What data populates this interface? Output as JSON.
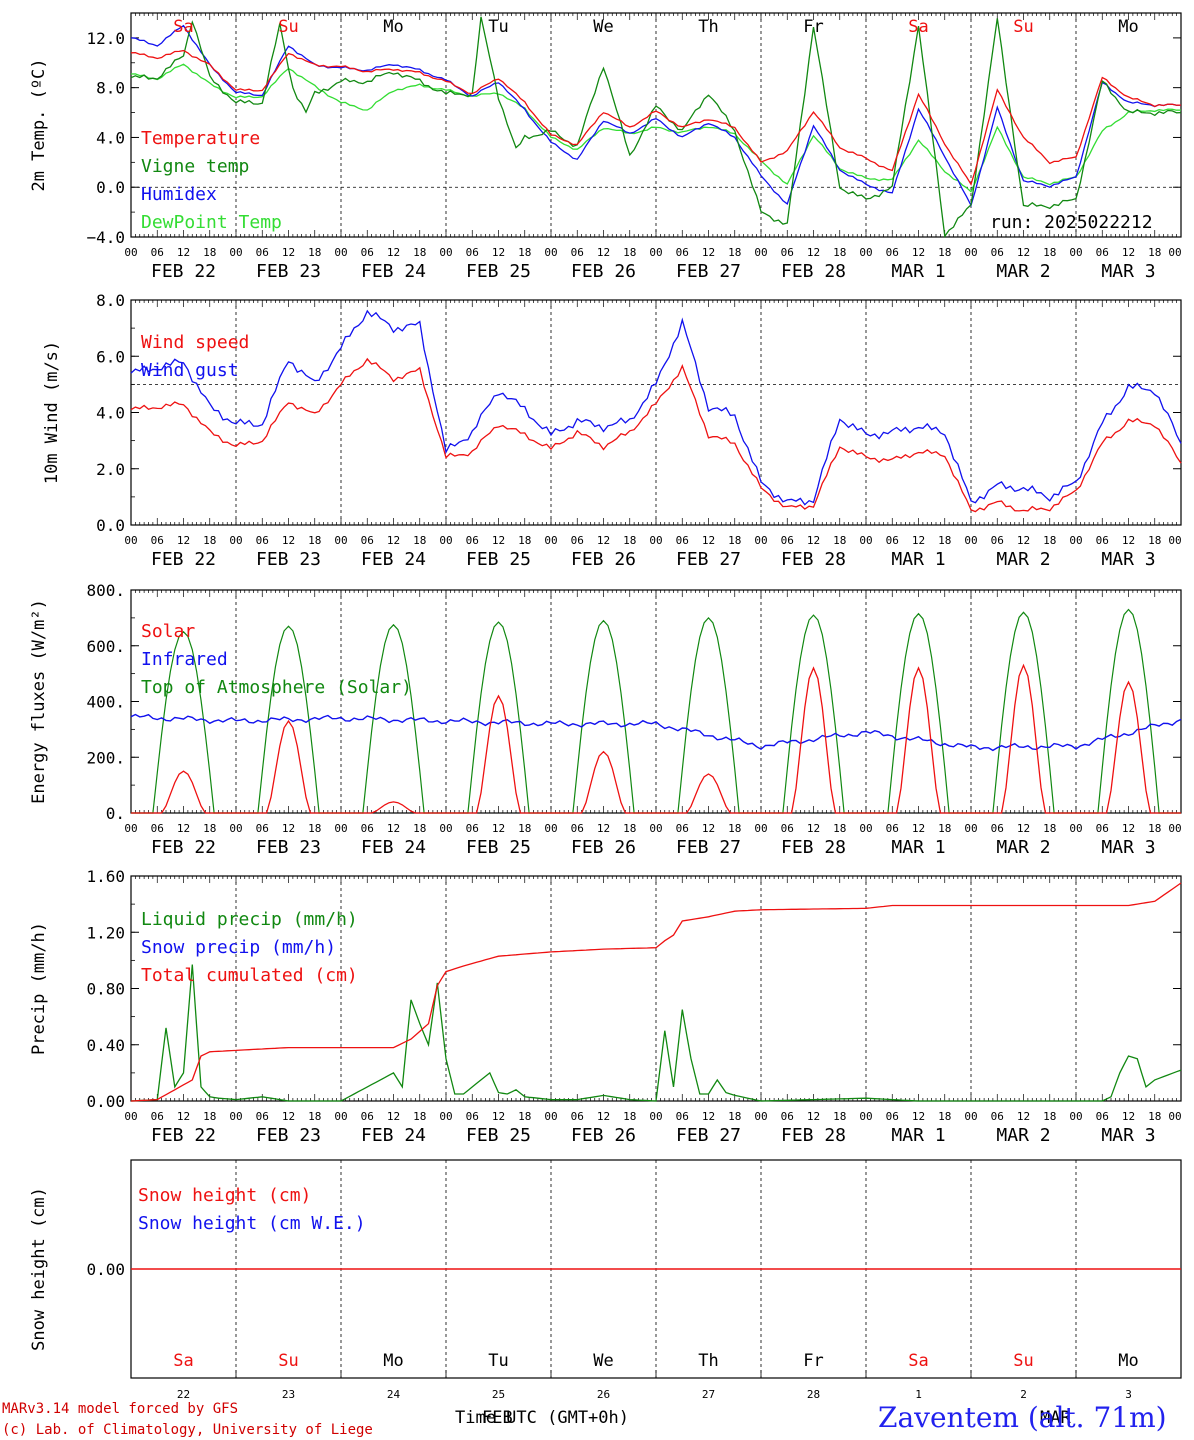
{
  "colors": {
    "red": "#ee1111",
    "green": "#118811",
    "blue": "#1111ee",
    "lightgreen": "#33dd33",
    "black": "#000000"
  },
  "chart_data": [
    {
      "type": "line",
      "id": "temp",
      "ylabel": "2m Temp. (ºC)",
      "ylim": [
        -4,
        14
      ],
      "yticks": [
        -4,
        0,
        4,
        8,
        12
      ],
      "ytick_labels": [
        "−4.0",
        "0.0",
        "4.0",
        "8.0",
        "12.0"
      ],
      "ref_line": 0,
      "x_unit": "hours since 2025-02-22 00 UTC",
      "legend": [
        "Temperature",
        "Vigne temp",
        "Humidex",
        "DewPoint Temp"
      ],
      "run_label": "run: 2025022212",
      "series": [
        {
          "name": "Temperature",
          "color": "red",
          "x": [
            0,
            6,
            12,
            18,
            24,
            30,
            36,
            42,
            48,
            54,
            60,
            66,
            72,
            78,
            84,
            90,
            96,
            102,
            108,
            114,
            120,
            126,
            132,
            138,
            144,
            150,
            156,
            162,
            168,
            174,
            180,
            186,
            192,
            198,
            204,
            210,
            216,
            222,
            228,
            234,
            240
          ],
          "y": [
            10.8,
            10.4,
            11.0,
            9.8,
            7.8,
            7.8,
            10.8,
            9.8,
            9.7,
            9.3,
            9.5,
            9.2,
            8.5,
            7.5,
            8.8,
            6.8,
            4.2,
            3.4,
            6.1,
            4.8,
            6.1,
            4.8,
            5.5,
            4.8,
            2.0,
            2.9,
            6.1,
            3.2,
            2.3,
            1.3,
            7.5,
            3.5,
            0.2,
            7.8,
            4.0,
            2.0,
            2.4,
            8.8,
            7.2,
            6.6,
            6.6
          ]
        },
        {
          "name": "Vigne temp",
          "color": "green",
          "x": [
            0,
            6,
            12,
            14,
            18,
            24,
            30,
            34,
            37,
            40,
            42,
            48,
            54,
            60,
            66,
            72,
            78,
            80,
            84,
            88,
            90,
            96,
            102,
            108,
            114,
            120,
            126,
            132,
            138,
            144,
            150,
            156,
            162,
            168,
            174,
            180,
            186,
            192,
            198,
            204,
            210,
            216,
            222,
            228,
            234,
            240
          ],
          "y": [
            8.8,
            8.8,
            10.6,
            13.5,
            8.8,
            6.8,
            6.8,
            13.0,
            8.0,
            6.0,
            7.5,
            8.5,
            8.5,
            9.3,
            8.5,
            7.5,
            7.5,
            13.5,
            7.3,
            3.0,
            4.0,
            4.5,
            3.3,
            9.8,
            2.5,
            6.5,
            4.5,
            7.6,
            4.5,
            -2.0,
            -3.0,
            13.0,
            0.0,
            -1.0,
            0.0,
            13.0,
            -3.8,
            -1.5,
            13.5,
            -1.5,
            -1.5,
            -1.0,
            8.5,
            6.0,
            6.0,
            6.0
          ]
        },
        {
          "name": "Humidex",
          "color": "blue",
          "x": [
            0,
            6,
            12,
            18,
            24,
            30,
            36,
            42,
            48,
            54,
            60,
            66,
            72,
            78,
            84,
            90,
            96,
            102,
            108,
            114,
            120,
            126,
            132,
            138,
            144,
            150,
            156,
            162,
            168,
            174,
            180,
            186,
            192,
            198,
            204,
            210,
            216,
            222,
            228,
            234,
            240
          ],
          "y": [
            12.0,
            11.4,
            13.0,
            9.8,
            7.6,
            7.4,
            11.4,
            9.8,
            9.6,
            9.4,
            9.9,
            9.4,
            8.6,
            7.3,
            8.5,
            6.2,
            3.6,
            2.2,
            5.4,
            4.3,
            5.5,
            4.0,
            5.2,
            4.0,
            0.9,
            -1.4,
            5.0,
            1.4,
            0.2,
            -0.5,
            6.3,
            2.5,
            -1.5,
            6.4,
            0.5,
            0.1,
            0.8,
            8.4,
            6.8,
            6.6,
            6.6
          ]
        },
        {
          "name": "DewPoint Temp",
          "color": "lightgreen",
          "x": [
            0,
            6,
            12,
            18,
            24,
            30,
            36,
            42,
            48,
            54,
            60,
            66,
            72,
            78,
            84,
            90,
            96,
            102,
            108,
            114,
            120,
            126,
            132,
            138,
            144,
            150,
            156,
            162,
            168,
            174,
            180,
            186,
            192,
            198,
            204,
            210,
            216,
            222,
            228,
            234,
            240
          ],
          "y": [
            9.1,
            8.7,
            9.9,
            8.3,
            7.2,
            7.3,
            9.6,
            8.1,
            6.8,
            6.2,
            7.8,
            8.2,
            7.8,
            7.3,
            7.6,
            6.3,
            4.0,
            3.0,
            4.8,
            4.3,
            4.8,
            4.4,
            4.9,
            4.3,
            2.1,
            0.2,
            4.2,
            1.5,
            0.7,
            0.6,
            3.8,
            1.3,
            -0.4,
            4.8,
            0.8,
            0.3,
            0.8,
            4.5,
            6.0,
            6.2,
            6.2
          ]
        }
      ]
    },
    {
      "type": "line",
      "id": "wind",
      "ylabel": "10m Wind (m/s)",
      "ylim": [
        0,
        8
      ],
      "yticks": [
        0,
        2,
        4,
        6,
        8
      ],
      "ytick_labels": [
        "0.0",
        "2.0",
        "4.0",
        "6.0",
        "8.0"
      ],
      "ref_line": 5,
      "legend": [
        "Wind speed",
        "Wind gust"
      ],
      "series": [
        {
          "name": "Wind speed",
          "color": "red",
          "x": [
            0,
            6,
            12,
            18,
            24,
            30,
            36,
            42,
            48,
            54,
            60,
            66,
            72,
            78,
            84,
            90,
            96,
            102,
            108,
            114,
            120,
            126,
            132,
            138,
            144,
            150,
            156,
            162,
            168,
            174,
            180,
            186,
            192,
            198,
            204,
            210,
            216,
            222,
            228,
            234,
            240
          ],
          "y": [
            4.1,
            4.2,
            4.3,
            3.3,
            2.8,
            3.0,
            4.4,
            3.9,
            5.0,
            5.9,
            5.2,
            5.5,
            2.4,
            2.6,
            3.6,
            3.2,
            2.7,
            3.3,
            2.8,
            3.3,
            4.3,
            5.6,
            3.2,
            2.9,
            1.3,
            0.6,
            0.7,
            2.8,
            2.4,
            2.3,
            2.6,
            2.5,
            0.5,
            0.8,
            0.5,
            0.6,
            1.2,
            2.9,
            3.7,
            3.6,
            2.2
          ]
        },
        {
          "name": "Wind gust",
          "color": "blue",
          "x": [
            0,
            6,
            12,
            18,
            24,
            30,
            36,
            42,
            48,
            54,
            60,
            66,
            72,
            78,
            84,
            90,
            96,
            102,
            108,
            114,
            120,
            126,
            132,
            138,
            144,
            150,
            156,
            162,
            168,
            174,
            180,
            186,
            192,
            198,
            204,
            210,
            216,
            222,
            228,
            234,
            240
          ],
          "y": [
            5.4,
            5.6,
            5.8,
            4.2,
            3.6,
            3.6,
            5.9,
            5.0,
            6.3,
            7.6,
            7.0,
            7.1,
            2.6,
            3.3,
            4.8,
            4.1,
            3.2,
            3.7,
            3.5,
            3.7,
            5.0,
            7.2,
            4.2,
            3.9,
            1.5,
            0.8,
            0.9,
            3.8,
            3.2,
            3.3,
            3.5,
            3.3,
            0.8,
            1.4,
            1.3,
            1.0,
            1.5,
            3.6,
            4.9,
            4.8,
            2.9
          ]
        }
      ]
    },
    {
      "type": "line",
      "id": "flux",
      "ylabel": "Energy fluxes (W/m²)",
      "ylim": [
        0,
        800
      ],
      "yticks": [
        0,
        200,
        400,
        600,
        800
      ],
      "ytick_labels": [
        "0.",
        "200.",
        "400.",
        "600.",
        "800."
      ],
      "legend": [
        "Solar",
        "Infrared",
        "Top of Atmosphere (Solar)"
      ],
      "toa_peaks": [
        650,
        670,
        675,
        685,
        690,
        700,
        710,
        715,
        720,
        730
      ],
      "solar_peaks": [
        150,
        330,
        40,
        420,
        220,
        140,
        520,
        520,
        530,
        470
      ],
      "ir_daily": [
        345,
        330,
        340,
        330,
        320,
        320,
        240,
        290,
        235,
        240
      ],
      "ir_end": 335
    },
    {
      "type": "line",
      "id": "precip",
      "ylabel": "Precip (mm/h)",
      "ylim": [
        0,
        1.6
      ],
      "yticks": [
        0,
        0.4,
        0.8,
        1.2,
        1.6
      ],
      "ytick_labels": [
        "0.00",
        "0.40",
        "0.80",
        "1.20",
        "1.60"
      ],
      "legend": [
        "Liquid precip (mm/h)",
        "Snow precip (mm/h)",
        "Total cumulated (cm)"
      ],
      "series": [
        {
          "name": "Liquid precip (mm/h)",
          "color": "green",
          "x": [
            0,
            6,
            8,
            10,
            12,
            14,
            16,
            18,
            20,
            24,
            30,
            36,
            48,
            60,
            62,
            64,
            66,
            68,
            70,
            72,
            74,
            76,
            80,
            82,
            84,
            86,
            88,
            90,
            96,
            102,
            108,
            114,
            120,
            122,
            124,
            126,
            128,
            130,
            132,
            134,
            136,
            138,
            144,
            168,
            174,
            180,
            210,
            216,
            222,
            224,
            226,
            228,
            230,
            232,
            234,
            240
          ],
          "y": [
            0,
            0.01,
            0.52,
            0.1,
            0.2,
            0.97,
            0.1,
            0.03,
            0.02,
            0.01,
            0.03,
            0.0,
            0.0,
            0.2,
            0.1,
            0.72,
            0.55,
            0.4,
            0.84,
            0.3,
            0.05,
            0.05,
            0.15,
            0.2,
            0.06,
            0.05,
            0.08,
            0.03,
            0.01,
            0.01,
            0.04,
            0.01,
            0.0,
            0.5,
            0.1,
            0.65,
            0.3,
            0.05,
            0.05,
            0.15,
            0.06,
            0.04,
            0.0,
            0.02,
            0.01,
            0.0,
            0.0,
            0.0,
            0.0,
            0.03,
            0.2,
            0.32,
            0.3,
            0.1,
            0.15,
            0.22
          ]
        },
        {
          "name": "Total cumulated (cm)",
          "color": "red",
          "x": [
            0,
            6,
            10,
            14,
            16,
            18,
            24,
            36,
            48,
            60,
            64,
            68,
            70,
            72,
            76,
            84,
            96,
            108,
            120,
            122,
            124,
            126,
            132,
            138,
            144,
            168,
            174,
            180,
            204,
            216,
            222,
            228,
            234,
            240
          ],
          "y": [
            0,
            0.01,
            0.08,
            0.15,
            0.32,
            0.35,
            0.36,
            0.38,
            0.38,
            0.38,
            0.44,
            0.55,
            0.82,
            0.92,
            0.96,
            1.03,
            1.06,
            1.08,
            1.09,
            1.14,
            1.18,
            1.28,
            1.31,
            1.35,
            1.36,
            1.37,
            1.39,
            1.39,
            1.39,
            1.39,
            1.39,
            1.39,
            1.42,
            1.55
          ]
        }
      ]
    },
    {
      "type": "line",
      "id": "snow",
      "ylabel": "Snow height (cm)",
      "ylim": [
        -1,
        1
      ],
      "yticks": [
        0
      ],
      "ytick_labels": [
        "0.00"
      ],
      "legend": [
        "Snow height (cm)",
        "Snow height (cm W.E.)"
      ],
      "series": [
        {
          "name": "Snow height (cm)",
          "color": "red",
          "x": [
            0,
            240
          ],
          "y": [
            0,
            0
          ]
        }
      ]
    }
  ],
  "x_axis": {
    "hour_labels": [
      "00",
      "06",
      "12",
      "18"
    ],
    "end_label": "00",
    "dates": [
      "FEB 22",
      "FEB 23",
      "FEB 24",
      "FEB 25",
      "FEB 26",
      "FEB 27",
      "FEB 28",
      "MAR  1",
      "MAR  2",
      "MAR  3"
    ],
    "day_names": [
      "Sa",
      "Su",
      "Mo",
      "Tu",
      "We",
      "Th",
      "Fr",
      "Sa",
      "Su",
      "Mo"
    ],
    "day_colors": [
      "red",
      "red",
      "black",
      "black",
      "black",
      "black",
      "black",
      "red",
      "red",
      "black"
    ],
    "day_numbers": [
      "22",
      "23",
      "24",
      "25",
      "26",
      "27",
      "28",
      "1",
      "2",
      "3"
    ]
  },
  "footer": {
    "model": "MARv3.14 model forced by GFS",
    "credit": "(c) Lab. of Climatology, University of Liege",
    "xlabel": "Time UTC (GMT+0h)",
    "month_overlay_left": "FEB",
    "month_overlay_right": "MAR",
    "station": "Zaventem (alt. 71m)"
  }
}
